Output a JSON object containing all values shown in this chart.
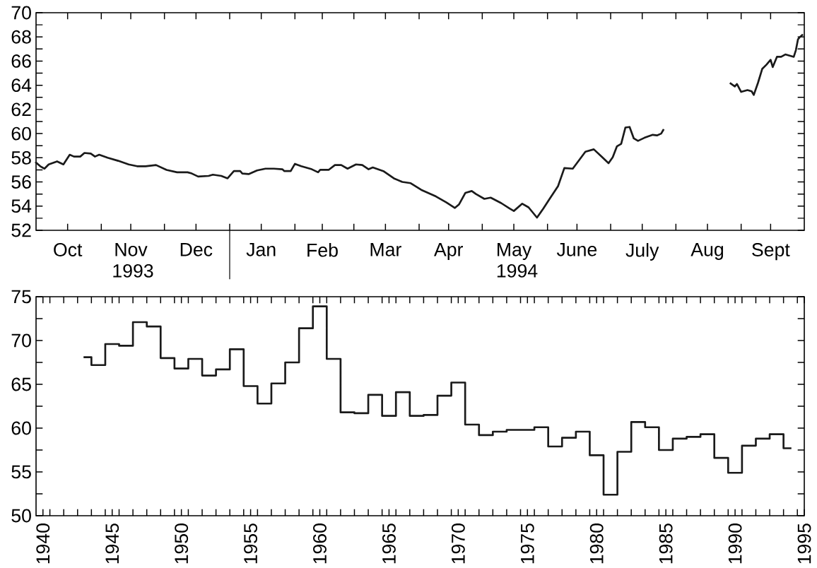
{
  "chart_data": [
    {
      "type": "line",
      "xlim": [
        "1993-10-01",
        "1994-10-01"
      ],
      "ylim": [
        52,
        70
      ],
      "xticks": [
        {
          "value": "1993-10-16",
          "label": "Oct"
        },
        {
          "value": "1993-11-15",
          "label": "Nov"
        },
        {
          "value": "1993-12-16",
          "label": "Dec"
        },
        {
          "value": "1994-01-16",
          "label": "Jan"
        },
        {
          "value": "1994-02-14",
          "label": "Feb"
        },
        {
          "value": "1994-03-16",
          "label": "Mar"
        },
        {
          "value": "1994-04-15",
          "label": "Apr"
        },
        {
          "value": "1994-05-16",
          "label": "May"
        },
        {
          "value": "1994-06-15",
          "label": "June"
        },
        {
          "value": "1994-07-16",
          "label": "July"
        },
        {
          "value": "1994-08-16",
          "label": "Aug"
        },
        {
          "value": "1994-09-15",
          "label": "Sept"
        },
        {
          "value": "1993-11-01",
          "label": null
        },
        {
          "value": "1993-12-01",
          "label": null
        },
        {
          "value": "1994-01-01",
          "label": null
        },
        {
          "value": "1994-02-01",
          "label": null
        },
        {
          "value": "1994-03-01",
          "label": null
        },
        {
          "value": "1994-04-01",
          "label": null
        },
        {
          "value": "1994-05-01",
          "label": null
        },
        {
          "value": "1994-06-01",
          "label": null
        },
        {
          "value": "1994-07-01",
          "label": null
        },
        {
          "value": "1994-08-01",
          "label": null
        },
        {
          "value": "1994-09-01",
          "label": null
        }
      ],
      "yticks": [
        52,
        54,
        56,
        58,
        60,
        62,
        64,
        66,
        68,
        70,
        {
          "value": 53,
          "label": null
        },
        {
          "value": 55,
          "label": null
        },
        {
          "value": 57,
          "label": null
        },
        {
          "value": 59,
          "label": null
        },
        {
          "value": 61,
          "label": null
        },
        {
          "value": 63,
          "label": null
        },
        {
          "value": 65,
          "label": null
        },
        {
          "value": 67,
          "label": null
        },
        {
          "value": 69,
          "label": null
        }
      ],
      "annotations": [
        "1993",
        "1994"
      ],
      "series": [
        {
          "color": "#1a1a1a",
          "x": [
            "1993-10-01",
            "1993-10-03",
            "1993-10-05",
            "1993-10-07",
            "1993-10-11",
            "1993-10-14",
            "1993-10-17",
            "1993-10-19",
            "1993-10-22",
            "1993-10-24",
            "1993-10-27",
            "1993-10-29",
            "1993-10-31",
            "1993-11-04",
            "1993-11-09",
            "1993-11-14",
            "1993-11-18",
            "1993-11-22",
            "1993-11-27",
            "1993-12-02",
            "1993-12-07",
            "1993-12-12",
            "1993-12-14",
            "1993-12-17",
            "1993-12-22",
            "1993-12-24",
            "1993-12-28",
            "1993-12-31",
            "1994-01-03",
            "1994-01-06",
            "1994-01-07",
            "1994-01-10",
            "1994-01-14",
            "1994-01-18",
            "1994-01-22",
            "1994-01-26",
            "1994-01-27",
            "1994-01-30",
            "1994-02-01",
            "1994-02-04",
            "1994-02-09",
            "1994-02-12",
            "1994-02-13",
            "1994-02-17",
            "1994-02-20",
            "1994-02-23",
            "1994-02-26",
            "1994-03-02",
            "1994-03-05",
            "1994-03-08",
            "1994-03-10",
            "1994-03-15",
            "1994-03-20",
            "1994-03-24",
            "1994-03-28",
            "1994-04-02",
            "1994-04-09",
            "1994-04-14",
            "1994-04-18",
            "1994-04-20",
            "1994-04-23",
            "1994-04-26",
            "1994-04-28",
            "1994-05-02",
            "1994-05-05",
            "1994-05-10",
            "1994-05-14",
            "1994-05-16",
            "1994-05-20",
            "1994-05-23",
            "1994-05-27",
            "1994-05-30",
            "1994-06-02",
            "1994-06-06",
            "1994-06-09",
            "1994-06-13",
            "1994-06-16",
            "1994-06-19",
            "1994-06-23",
            "1994-06-27",
            "1994-06-30",
            "1994-07-02",
            "1994-07-04",
            "1994-07-06",
            "1994-07-08",
            "1994-07-10",
            "1994-07-12",
            "1994-07-14",
            "1994-07-17",
            "1994-07-21",
            "1994-07-23",
            "1994-07-25",
            "1994-07-26",
            "1994-08-10",
            "1994-08-27",
            "1994-08-29",
            "1994-08-30",
            "1994-09-01",
            "1994-09-04",
            "1994-09-06",
            "1994-09-07",
            "1994-09-09",
            "1994-09-11",
            "1994-09-13",
            "1994-09-15",
            "1994-09-16",
            "1994-09-18",
            "1994-09-20",
            "1994-09-22",
            "1994-09-24",
            "1994-09-26",
            "1994-09-27",
            "1994-09-28",
            "1994-09-29",
            "1994-09-30"
          ],
          "values": [
            57.6,
            57.3,
            57.1,
            57.45,
            57.7,
            57.45,
            58.25,
            58.1,
            58.1,
            58.4,
            58.35,
            58.1,
            58.25,
            58.0,
            57.75,
            57.45,
            57.3,
            57.3,
            57.4,
            57.0,
            56.8,
            56.8,
            56.7,
            56.45,
            56.5,
            56.6,
            56.5,
            56.3,
            56.9,
            56.9,
            56.7,
            56.65,
            56.95,
            57.1,
            57.1,
            57.05,
            56.9,
            56.9,
            57.5,
            57.3,
            57.05,
            56.8,
            57.0,
            57.0,
            57.4,
            57.4,
            57.1,
            57.45,
            57.4,
            57.05,
            57.2,
            56.9,
            56.3,
            56.0,
            55.9,
            55.35,
            54.8,
            54.3,
            53.85,
            54.15,
            55.1,
            55.25,
            55.0,
            54.6,
            54.7,
            54.25,
            53.8,
            53.6,
            54.2,
            53.9,
            53.05,
            53.8,
            54.6,
            55.65,
            57.15,
            57.1,
            57.8,
            58.5,
            58.7,
            58.05,
            57.55,
            58.05,
            58.95,
            59.15,
            60.5,
            60.55,
            59.6,
            59.4,
            59.65,
            59.9,
            59.85,
            60.0,
            60.3,
            null,
            64.15,
            63.9,
            64.1,
            63.45,
            63.6,
            63.5,
            63.2,
            64.2,
            65.35,
            65.7,
            66.1,
            65.5,
            66.35,
            66.35,
            66.55,
            66.45,
            66.35,
            66.9,
            67.8,
            68.0,
            68.15
          ]
        }
      ]
    },
    {
      "type": "step",
      "xlim": [
        1939.5,
        1995
      ],
      "ylim": [
        50,
        75
      ],
      "xticks": [
        1940,
        1945,
        1950,
        1955,
        1960,
        1965,
        1970,
        1975,
        1980,
        1985,
        1990,
        1995,
        {
          "value": 1940.5,
          "label": null
        },
        {
          "value": 1941.5,
          "label": null
        },
        {
          "value": 1942.5,
          "label": null
        },
        {
          "value": 1943.5,
          "label": null
        },
        {
          "value": 1944.5,
          "label": null
        },
        {
          "value": 1945.5,
          "label": null
        },
        {
          "value": 1946.5,
          "label": null
        },
        {
          "value": 1947.5,
          "label": null
        },
        {
          "value": 1948.5,
          "label": null
        },
        {
          "value": 1949.5,
          "label": null
        },
        {
          "value": 1950.5,
          "label": null
        },
        {
          "value": 1951.5,
          "label": null
        },
        {
          "value": 1952.5,
          "label": null
        },
        {
          "value": 1953.5,
          "label": null
        },
        {
          "value": 1954.5,
          "label": null
        },
        {
          "value": 1955.5,
          "label": null
        },
        {
          "value": 1956.5,
          "label": null
        },
        {
          "value": 1957.5,
          "label": null
        },
        {
          "value": 1958.5,
          "label": null
        },
        {
          "value": 1959.5,
          "label": null
        },
        {
          "value": 1960.5,
          "label": null
        },
        {
          "value": 1961.5,
          "label": null
        },
        {
          "value": 1962.5,
          "label": null
        },
        {
          "value": 1963.5,
          "label": null
        },
        {
          "value": 1964.5,
          "label": null
        },
        {
          "value": 1965.5,
          "label": null
        },
        {
          "value": 1966.5,
          "label": null
        },
        {
          "value": 1967.5,
          "label": null
        },
        {
          "value": 1968.5,
          "label": null
        },
        {
          "value": 1969.5,
          "label": null
        },
        {
          "value": 1970.5,
          "label": null
        },
        {
          "value": 1971.5,
          "label": null
        },
        {
          "value": 1972.5,
          "label": null
        },
        {
          "value": 1973.5,
          "label": null
        },
        {
          "value": 1974.5,
          "label": null
        },
        {
          "value": 1975.5,
          "label": null
        },
        {
          "value": 1976.5,
          "label": null
        },
        {
          "value": 1977.5,
          "label": null
        },
        {
          "value": 1978.5,
          "label": null
        },
        {
          "value": 1979.5,
          "label": null
        },
        {
          "value": 1980.5,
          "label": null
        },
        {
          "value": 1981.5,
          "label": null
        },
        {
          "value": 1982.5,
          "label": null
        },
        {
          "value": 1983.5,
          "label": null
        },
        {
          "value": 1984.5,
          "label": null
        },
        {
          "value": 1985.5,
          "label": null
        },
        {
          "value": 1986.5,
          "label": null
        },
        {
          "value": 1987.5,
          "label": null
        },
        {
          "value": 1988.5,
          "label": null
        },
        {
          "value": 1989.5,
          "label": null
        },
        {
          "value": 1990.5,
          "label": null
        },
        {
          "value": 1991.5,
          "label": null
        },
        {
          "value": 1992.5,
          "label": null
        },
        {
          "value": 1993.5,
          "label": null
        },
        {
          "value": 1994.5,
          "label": null
        }
      ],
      "yticks": [
        50,
        55,
        60,
        65,
        70,
        75,
        {
          "value": 52.5,
          "label": null
        },
        {
          "value": 57.5,
          "label": null
        },
        {
          "value": 62.5,
          "label": null
        },
        {
          "value": 67.5,
          "label": null
        },
        {
          "value": 72.5,
          "label": null
        }
      ],
      "series": [
        {
          "color": "#1a1a1a",
          "x": [
            1943,
            1944,
            1945,
            1946,
            1947,
            1948,
            1949,
            1950,
            1951,
            1952,
            1953,
            1954,
            1955,
            1956,
            1957,
            1958,
            1959,
            1960,
            1961,
            1962,
            1963,
            1964,
            1965,
            1966,
            1967,
            1968,
            1969,
            1970,
            1971,
            1972,
            1973,
            1974,
            1975,
            1976,
            1977,
            1978,
            1979,
            1980,
            1981,
            1982,
            1983,
            1984,
            1985,
            1986,
            1987,
            1988,
            1989,
            1990,
            1991,
            1992,
            1993,
            1994
          ],
          "values": [
            68.1,
            67.2,
            69.6,
            69.4,
            72.1,
            71.6,
            68.0,
            66.8,
            67.9,
            66.0,
            66.7,
            69.0,
            64.8,
            62.8,
            65.1,
            67.5,
            71.4,
            73.9,
            67.9,
            61.8,
            61.7,
            63.8,
            61.4,
            64.1,
            61.4,
            61.5,
            63.7,
            65.2,
            60.4,
            59.2,
            59.6,
            59.8,
            59.8,
            60.1,
            57.9,
            58.9,
            59.6,
            56.9,
            52.4,
            57.3,
            60.7,
            60.1,
            57.5,
            58.8,
            59.0,
            59.3,
            56.6,
            54.9,
            58.0,
            58.8,
            59.3,
            57.7
          ]
        }
      ]
    }
  ]
}
